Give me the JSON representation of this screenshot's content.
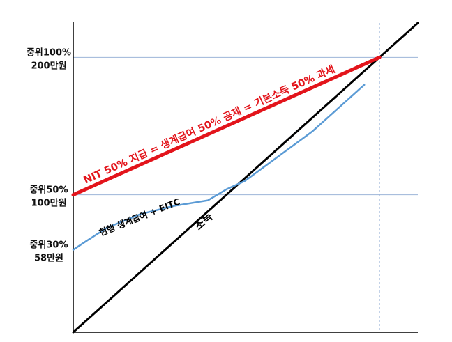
{
  "chart_data": {
    "type": "line",
    "title": "",
    "xlabel": "",
    "ylabel": "",
    "xlim": [
      0,
      1.125
    ],
    "ylim": [
      0,
      1.125
    ],
    "y_tick_labels": [
      {
        "value": 1.0,
        "lines": [
          "중위100%",
          "200만원"
        ]
      },
      {
        "value": 0.5,
        "lines": [
          "중위50%",
          "100만원"
        ]
      },
      {
        "value": 0.3,
        "lines": [
          "중위30%",
          "58만원"
        ]
      }
    ],
    "reference_lines": {
      "horizontal": [
        1.0,
        0.5
      ],
      "vertical": [
        1.0
      ],
      "color": "#9db4d8"
    },
    "series": [
      {
        "name": "소득",
        "color": "#000000",
        "x": [
          0,
          1.125
        ],
        "y": [
          0,
          1.125
        ]
      },
      {
        "name": "NIT 50% 지급 = 생계급여 50% 공제 = 기본소득 50% 과세",
        "color": "#e3141b",
        "x": [
          0,
          1.0
        ],
        "y": [
          0.5,
          1.0
        ]
      },
      {
        "name": "현행 생계급여 + EITC",
        "color": "#5b9bd5",
        "x": [
          0,
          0.04,
          0.11,
          0.22,
          0.33,
          0.44,
          0.5,
          0.56,
          0.67,
          0.78,
          0.89,
          0.95
        ],
        "y": [
          0.3,
          0.33,
          0.38,
          0.43,
          0.46,
          0.48,
          0.52,
          0.55,
          0.64,
          0.73,
          0.84,
          0.9
        ]
      }
    ],
    "annotations": [
      {
        "text": "NIT 50% 지급 = 생계급여 50% 공제 = 기본소득 50% 과세",
        "color": "#e3141b"
      },
      {
        "text": "현행 생계급여 + EITC",
        "color": "#000000"
      },
      {
        "text": "소득",
        "color": "#000000"
      }
    ],
    "grid": false,
    "legend": "none"
  }
}
